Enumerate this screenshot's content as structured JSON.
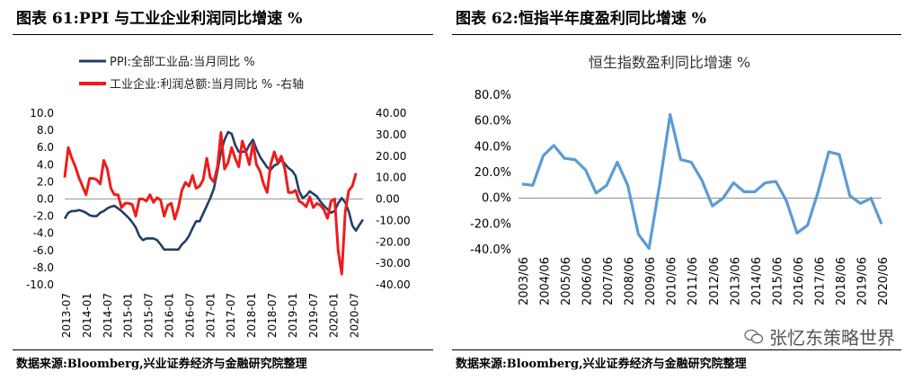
{
  "left_panel": {
    "title": "图表 61:PPI 与工业企业利润同比增速 %",
    "source": "数据来源:Bloomberg,兴业证券经济与金融研究院整理"
  },
  "right_panel": {
    "title": "图表 62:恒指半年度盈利同比增速 %",
    "source": "数据来源:Bloomberg,兴业证券经济与金融研究院整理"
  },
  "watermark": "张忆东策略世界",
  "chart_data": [
    {
      "type": "line",
      "title": "",
      "legend_placement": "top-left",
      "x_labels": [
        "2013-07",
        "2014-01",
        "2014-07",
        "2015-01",
        "2015-07",
        "2016-01",
        "2016-07",
        "2017-01",
        "2017-07",
        "2018-01",
        "2018-07",
        "2019-01",
        "2019-07",
        "2020-01",
        "2020-07"
      ],
      "y_left_ticks": [
        "10.0",
        "8.0",
        "6.0",
        "4.0",
        "2.0",
        "0.0",
        "-2.0",
        "-4.0",
        "-6.0",
        "-8.0",
        "-10.0"
      ],
      "y_right_ticks": [
        "40.00",
        "30.00",
        "20.00",
        "10.00",
        "0.00",
        "-10.00",
        "-20.00",
        "-30.00",
        "-40.00"
      ],
      "ylim_left": [
        -10,
        10
      ],
      "ylim_right": [
        -40,
        40
      ],
      "series": [
        {
          "name": "PPI:全部工业品:当月同比 %",
          "axis": "left",
          "color": "#1f3f66",
          "t_start": 0,
          "values": [
            -2.3,
            -1.6,
            -1.4,
            -1.4,
            -1.3,
            -1.4,
            -1.6,
            -1.9,
            -2.0,
            -2.0,
            -1.6,
            -1.4,
            -1.1,
            -0.9,
            -0.8,
            -1.1,
            -1.4,
            -1.8,
            -2.2,
            -2.7,
            -3.3,
            -4.3,
            -4.8,
            -4.6,
            -4.6,
            -4.6,
            -4.8,
            -5.3,
            -5.9,
            -5.9,
            -5.9,
            -5.9,
            -5.9,
            -5.3,
            -4.9,
            -4.3,
            -3.4,
            -2.6,
            -2.6,
            -1.7,
            -0.8,
            0.1,
            1.2,
            3.3,
            5.5,
            6.9,
            7.8,
            7.6,
            6.3,
            5.5,
            5.5,
            5.5,
            6.3,
            6.9,
            5.8,
            4.9,
            4.3,
            3.7,
            3.4,
            3.9,
            4.1,
            4.6,
            4.1,
            3.6,
            3.3,
            2.7,
            0.9,
            0.1,
            0.4,
            0.9,
            0.6,
            0.3,
            -0.3,
            -0.8,
            -1.2,
            -1.6,
            -1.4,
            -0.5,
            0.1,
            -0.4,
            -1.5,
            -3.1,
            -3.7,
            -3.0,
            -2.4
          ]
        },
        {
          "name": "工业企业:利润总额:当月同比 % -右轴",
          "axis": "right",
          "color": "#ee1c1c",
          "t_start": 0,
          "values": [
            10.0,
            24.0,
            19.0,
            15.0,
            10.0,
            6.0,
            2.0,
            9.6,
            9.6,
            9.0,
            7.0,
            18.0,
            14.0,
            5.0,
            2.0,
            2.0,
            -4.0,
            -2.0,
            -2.0,
            -2.6,
            -8.0,
            0.0,
            0.0,
            -1.0,
            2.0,
            -1.6,
            0.6,
            -0.5,
            -8.0,
            -3.0,
            -2.0,
            -9.4,
            -4.0,
            4.0,
            7.7,
            6.0,
            11.0,
            5.0,
            6.0,
            9.0,
            19.0,
            10.0,
            8.0,
            15.0,
            31.0,
            14.0,
            17.0,
            24.0,
            19.0,
            15.0,
            27.0,
            22.0,
            16.0,
            26.0,
            16.0,
            13.0,
            7.0,
            3.0,
            16.0,
            22.0,
            17.0,
            20.0,
            14.0,
            3.0,
            3.0,
            4.0,
            -1.0,
            -2.0,
            -3.6,
            1.0,
            -4.0,
            -2.0,
            -3.0,
            -5.0,
            -9.0,
            -1.0,
            0.0,
            -24.0,
            -35.0,
            -6.0,
            4.0,
            6.0,
            12.0
          ]
        }
      ]
    },
    {
      "type": "line",
      "title": "恒生指数盈利同比增速 %",
      "x_labels": [
        "2003/06",
        "2004/06",
        "2005/06",
        "2006/06",
        "2007/06",
        "2008/06",
        "2009/06",
        "2010/06",
        "2011/06",
        "2012/06",
        "2013/06",
        "2014/06",
        "2015/06",
        "2016/06",
        "2017/06",
        "2018/06",
        "2019/06",
        "2020/06"
      ],
      "y_ticks": [
        "80.0%",
        "60.0%",
        "40.0%",
        "20.0%",
        "0.0%",
        "-20.0%",
        "-40.0%"
      ],
      "ylim": [
        -40,
        80
      ],
      "series": [
        {
          "color": "#5b9bd5",
          "values": [
            11.0,
            10.0,
            33.0,
            41.0,
            31.0,
            30.0,
            22.0,
            4.0,
            10.0,
            28.0,
            10.0,
            -28.0,
            -39.0,
            10.0,
            65.0,
            30.0,
            28.0,
            14.0,
            -6.0,
            0.0,
            12.0,
            5.0,
            5.0,
            12.0,
            13.0,
            -2.0,
            -27.0,
            -21.0,
            5.0,
            36.0,
            34.0,
            2.0,
            -4.0,
            0.0,
            -20.0
          ]
        }
      ]
    }
  ]
}
